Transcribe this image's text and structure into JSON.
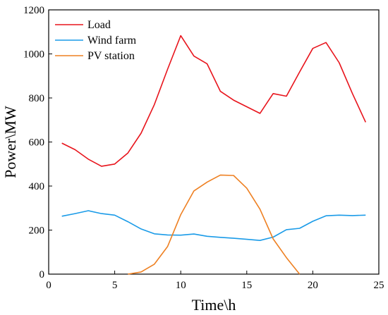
{
  "chart_data": {
    "type": "line",
    "title": "",
    "xlabel": "Time\\h",
    "ylabel": "Power\\MW",
    "xlim": [
      0,
      25
    ],
    "ylim": [
      0,
      1200
    ],
    "xticks": [
      0,
      5,
      10,
      15,
      20,
      25
    ],
    "yticks": [
      0,
      200,
      400,
      600,
      800,
      1000,
      1200
    ],
    "grid": false,
    "legend_position": "top-left",
    "series": [
      {
        "name": "Load",
        "color": "#e8141c",
        "x": [
          1,
          2,
          3,
          4,
          5,
          6,
          7,
          8,
          9,
          10,
          11,
          12,
          13,
          14,
          15,
          16,
          17,
          18,
          19,
          20,
          21,
          22,
          23,
          24
        ],
        "values": [
          595,
          565,
          522,
          490,
          500,
          550,
          640,
          770,
          930,
          1083,
          990,
          955,
          830,
          790,
          760,
          730,
          820,
          808,
          918,
          1025,
          1052,
          960,
          820,
          690
        ]
      },
      {
        "name": "Wind farm",
        "color": "#1a9be8",
        "x": [
          1,
          2,
          3,
          4,
          5,
          6,
          7,
          8,
          9,
          10,
          11,
          12,
          13,
          14,
          15,
          16,
          17,
          18,
          19,
          20,
          21,
          22,
          23,
          24
        ],
        "values": [
          263,
          275,
          288,
          275,
          268,
          238,
          205,
          183,
          178,
          177,
          182,
          172,
          167,
          163,
          158,
          153,
          168,
          202,
          208,
          240,
          265,
          268,
          266,
          268
        ]
      },
      {
        "name": "PV station",
        "color": "#ee8022",
        "x": [
          6,
          7,
          8,
          9,
          10,
          11,
          12,
          13,
          14,
          15,
          16,
          17,
          18,
          19
        ],
        "values": [
          0,
          10,
          45,
          125,
          270,
          378,
          418,
          450,
          448,
          390,
          295,
          160,
          75,
          0
        ]
      }
    ]
  }
}
